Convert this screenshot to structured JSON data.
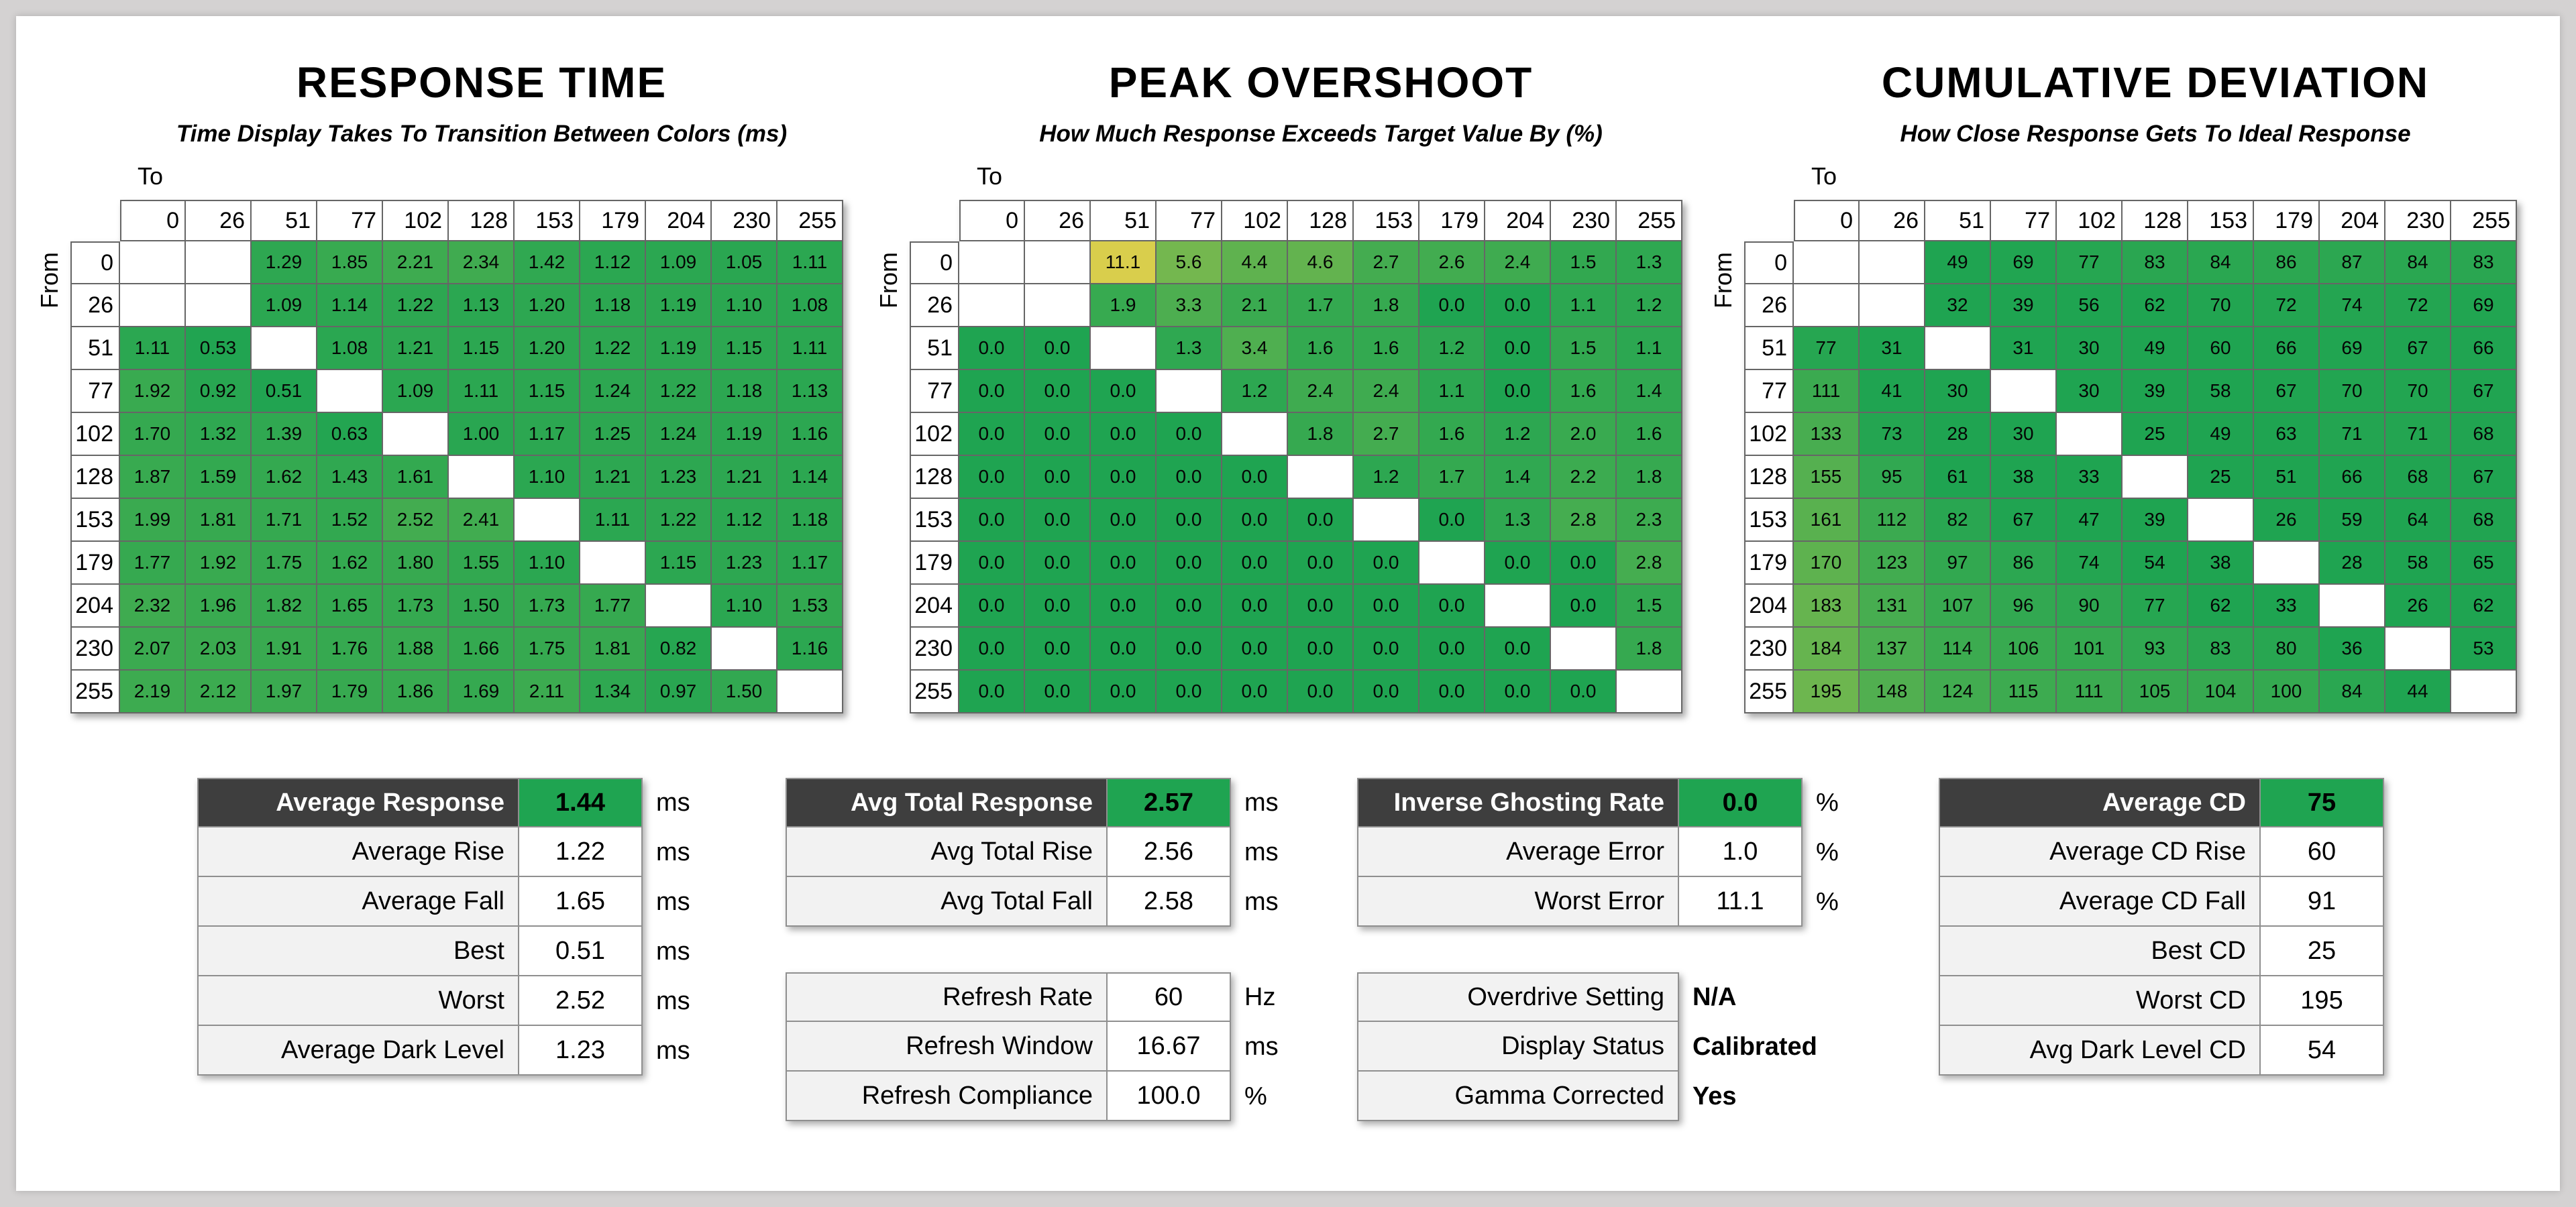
{
  "colors": {
    "green": "#1FA451",
    "yellow": "#D9CE4C",
    "header_dark": "#3E3E3E",
    "label_bg": "#F2F2F2",
    "stats_border": "#8F8F8F",
    "matrix_border": "#666666",
    "page_bg": "#D4D2D2",
    "card_bg": "#FFFFFF"
  },
  "axis": {
    "to_label": "To",
    "from_label": "From"
  },
  "levels": [
    "0",
    "26",
    "51",
    "77",
    "102",
    "128",
    "153",
    "179",
    "204",
    "230",
    "255"
  ],
  "matrices": [
    {
      "title": "RESPONSE TIME",
      "subtitle": "Time Display Takes To Transition Between Colors (ms)",
      "decimals": 2,
      "color_scale": {
        "min": 0.4,
        "range": 11,
        "gamma": 1
      },
      "rows": [
        [
          null,
          null,
          1.29,
          1.85,
          2.21,
          2.34,
          1.42,
          1.12,
          1.09,
          1.05,
          1.11
        ],
        [
          null,
          null,
          1.09,
          1.14,
          1.22,
          1.13,
          1.2,
          1.18,
          1.19,
          1.1,
          1.08
        ],
        [
          1.11,
          0.53,
          null,
          1.08,
          1.21,
          1.15,
          1.2,
          1.22,
          1.19,
          1.15,
          1.11
        ],
        [
          1.92,
          0.92,
          0.51,
          null,
          1.09,
          1.11,
          1.15,
          1.24,
          1.22,
          1.18,
          1.13
        ],
        [
          1.7,
          1.32,
          1.39,
          0.63,
          null,
          1.0,
          1.17,
          1.25,
          1.24,
          1.19,
          1.16
        ],
        [
          1.87,
          1.59,
          1.62,
          1.43,
          1.61,
          null,
          1.1,
          1.21,
          1.23,
          1.21,
          1.14
        ],
        [
          1.99,
          1.81,
          1.71,
          1.52,
          2.52,
          2.41,
          null,
          1.11,
          1.22,
          1.12,
          1.18
        ],
        [
          1.77,
          1.92,
          1.75,
          1.62,
          1.8,
          1.55,
          1.1,
          null,
          1.15,
          1.23,
          1.17
        ],
        [
          2.32,
          1.96,
          1.82,
          1.65,
          1.73,
          1.5,
          1.73,
          1.77,
          null,
          1.1,
          1.53
        ],
        [
          2.07,
          2.03,
          1.91,
          1.76,
          1.88,
          1.66,
          1.75,
          1.81,
          0.82,
          null,
          1.16
        ],
        [
          2.19,
          2.12,
          1.97,
          1.79,
          1.86,
          1.69,
          2.11,
          1.34,
          0.97,
          1.5,
          null
        ]
      ]
    },
    {
      "title": "PEAK OVERSHOOT",
      "subtitle": "How Much Response Exceeds Target Value By (%)",
      "decimals": 1,
      "color_scale": {
        "min": 0,
        "range": 11.1,
        "gamma": 1.15
      },
      "rows": [
        [
          null,
          null,
          11.1,
          5.6,
          4.4,
          4.6,
          2.7,
          2.6,
          2.4,
          1.5,
          1.3
        ],
        [
          null,
          null,
          1.9,
          3.3,
          2.1,
          1.7,
          1.8,
          0.0,
          0.0,
          1.1,
          1.2
        ],
        [
          0.0,
          0.0,
          null,
          1.3,
          3.4,
          1.6,
          1.6,
          1.2,
          0.0,
          1.5,
          1.1
        ],
        [
          0.0,
          0.0,
          0.0,
          null,
          1.2,
          2.4,
          2.4,
          1.1,
          0.0,
          1.6,
          1.4
        ],
        [
          0.0,
          0.0,
          0.0,
          0.0,
          null,
          1.8,
          2.7,
          1.6,
          1.2,
          2.0,
          1.6
        ],
        [
          0.0,
          0.0,
          0.0,
          0.0,
          0.0,
          null,
          1.2,
          1.7,
          1.4,
          2.2,
          1.8
        ],
        [
          0.0,
          0.0,
          0.0,
          0.0,
          0.0,
          0.0,
          null,
          0.0,
          1.3,
          2.8,
          2.3
        ],
        [
          0.0,
          0.0,
          0.0,
          0.0,
          0.0,
          0.0,
          0.0,
          null,
          0.0,
          0.0,
          2.8
        ],
        [
          0.0,
          0.0,
          0.0,
          0.0,
          0.0,
          0.0,
          0.0,
          0.0,
          null,
          0.0,
          1.5
        ],
        [
          0.0,
          0.0,
          0.0,
          0.0,
          0.0,
          0.0,
          0.0,
          0.0,
          0.0,
          null,
          1.8
        ],
        [
          0.0,
          0.0,
          0.0,
          0.0,
          0.0,
          0.0,
          0.0,
          0.0,
          0.0,
          0.0,
          null
        ]
      ]
    },
    {
      "title": "CUMULATIVE DEVIATION",
      "subtitle": "How Close Response Gets To Ideal Response",
      "decimals": 0,
      "color_scale": {
        "min": 65,
        "range": 310,
        "gamma": 1
      },
      "rows": [
        [
          null,
          null,
          49,
          69,
          77,
          83,
          84,
          86,
          87,
          84,
          83
        ],
        [
          null,
          null,
          32,
          39,
          56,
          62,
          70,
          72,
          74,
          72,
          69
        ],
        [
          77,
          31,
          null,
          31,
          30,
          49,
          60,
          66,
          69,
          67,
          66
        ],
        [
          111,
          41,
          30,
          null,
          30,
          39,
          58,
          67,
          70,
          70,
          67
        ],
        [
          133,
          73,
          28,
          30,
          null,
          25,
          49,
          63,
          71,
          71,
          68
        ],
        [
          155,
          95,
          61,
          38,
          33,
          null,
          25,
          51,
          66,
          68,
          67
        ],
        [
          161,
          112,
          82,
          67,
          47,
          39,
          null,
          26,
          59,
          64,
          68
        ],
        [
          170,
          123,
          97,
          86,
          74,
          54,
          38,
          null,
          28,
          58,
          65
        ],
        [
          183,
          131,
          107,
          96,
          90,
          77,
          62,
          33,
          null,
          26,
          62
        ],
        [
          184,
          137,
          114,
          106,
          101,
          93,
          83,
          80,
          36,
          null,
          53
        ],
        [
          195,
          148,
          124,
          115,
          111,
          105,
          104,
          100,
          84,
          44,
          null
        ]
      ]
    }
  ],
  "stats_blocks": {
    "response": [
      {
        "label": "Average Response",
        "value": "1.44",
        "unit": "ms",
        "header": true
      },
      {
        "label": "Average Rise",
        "value": "1.22",
        "unit": "ms"
      },
      {
        "label": "Average Fall",
        "value": "1.65",
        "unit": "ms"
      },
      {
        "label": "Best",
        "value": "0.51",
        "unit": "ms"
      },
      {
        "label": "Worst",
        "value": "2.52",
        "unit": "ms"
      },
      {
        "label": "Average Dark Level",
        "value": "1.23",
        "unit": "ms"
      }
    ],
    "total_response": [
      {
        "label": "Avg Total Response",
        "value": "2.57",
        "unit": "ms",
        "header": true
      },
      {
        "label": "Avg Total Rise",
        "value": "2.56",
        "unit": "ms"
      },
      {
        "label": "Avg Total Fall",
        "value": "2.58",
        "unit": "ms"
      }
    ],
    "refresh": [
      {
        "label": "Refresh Rate",
        "value": "60",
        "unit": "Hz"
      },
      {
        "label": "Refresh Window",
        "value": "16.67",
        "unit": "ms"
      },
      {
        "label": "Refresh Compliance",
        "value": "100.0",
        "unit": "%"
      }
    ],
    "ghosting": [
      {
        "label": "Inverse Ghosting Rate",
        "value": "0.0",
        "unit": "%",
        "header": true
      },
      {
        "label": "Average Error",
        "value": "1.0",
        "unit": "%"
      },
      {
        "label": "Worst Error",
        "value": "11.1",
        "unit": "%"
      }
    ],
    "display_info": [
      {
        "label": "Overdrive Setting",
        "value": "N/A",
        "plain": true
      },
      {
        "label": "Display Status",
        "value": "Calibrated",
        "plain": true
      },
      {
        "label": "Gamma Corrected",
        "value": "Yes",
        "plain": true
      }
    ],
    "cd": [
      {
        "label": "Average CD",
        "value": "75",
        "header": true
      },
      {
        "label": "Average CD Rise",
        "value": "60"
      },
      {
        "label": "Average CD Fall",
        "value": "91"
      },
      {
        "label": "Best CD",
        "value": "25"
      },
      {
        "label": "Worst CD",
        "value": "195"
      },
      {
        "label": "Avg Dark Level CD",
        "value": "54"
      }
    ]
  }
}
